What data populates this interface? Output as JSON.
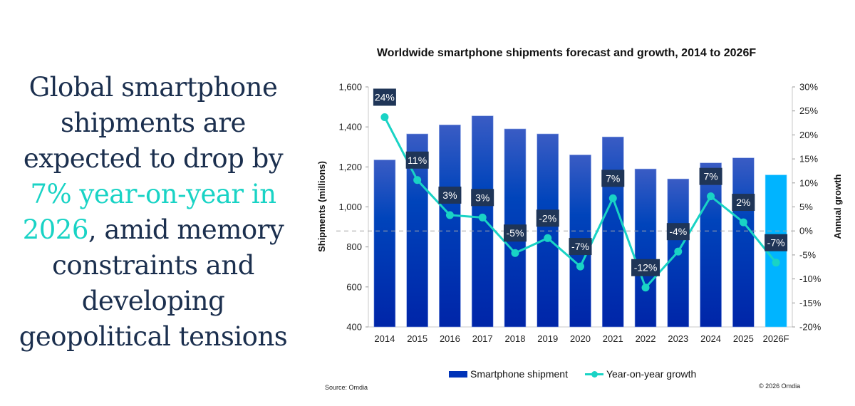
{
  "headline": {
    "part1": "Global smartphone shipments are expected to drop by ",
    "accent": "7% year-on-year in 2026",
    "part2": ", amid memory constraints and developing geopolitical tensions"
  },
  "colors": {
    "headline_text": "#1b2f4e",
    "accent": "#19d3c5",
    "bar_actual": "#0033b8",
    "bar_forecast": "#00b4ff",
    "growth_line": "#19d3c5",
    "data_label_bg": "#1f3557"
  },
  "footer": {
    "source": "Source: Omdia",
    "copyright": "© 2026 Omdia"
  },
  "chart_data": {
    "type": "bar",
    "title": "Worldwide smartphone shipments forecast and growth, 2014 to 2026F",
    "xlabel": "",
    "ylabel": "Shipments (millions)",
    "y2label": "Annual growth",
    "categories": [
      "2014",
      "2015",
      "2016",
      "2017",
      "2018",
      "2019",
      "2020",
      "2021",
      "2022",
      "2023",
      "2024",
      "2025",
      "2026F"
    ],
    "ylim": [
      400,
      1600
    ],
    "yticks": [
      400,
      600,
      800,
      1000,
      1200,
      1400,
      1600
    ],
    "ytick_labels": [
      "400",
      "600",
      "800",
      "1,000",
      "1,200",
      "1,400",
      "1,600"
    ],
    "y2lim": [
      -20,
      30
    ],
    "y2ticks": [
      -20,
      -15,
      -10,
      -5,
      0,
      5,
      10,
      15,
      20,
      25,
      30
    ],
    "y2tick_labels": [
      "-20%",
      "-15%",
      "-10%",
      "-5%",
      "0%",
      "5%",
      "10%",
      "15%",
      "20%",
      "25%",
      "30%"
    ],
    "zero_reference_line": "dashed at 0% growth",
    "forecast_categories": [
      "2026F"
    ],
    "series": [
      {
        "name": "Smartphone shipment",
        "type": "bar",
        "axis": "left",
        "values": [
          1235,
          1365,
          1410,
          1455,
          1390,
          1365,
          1260,
          1350,
          1190,
          1140,
          1220,
          1245,
          1160
        ]
      },
      {
        "name": "Year-on-year growth",
        "type": "line",
        "axis": "right",
        "values": [
          23.7,
          10.6,
          3.3,
          2.8,
          -4.6,
          -1.5,
          -7.4,
          6.8,
          -11.8,
          -4.3,
          7.2,
          1.8,
          -6.6
        ],
        "data_labels": [
          "24%",
          "11%",
          "3%",
          "3%",
          "-5%",
          "-2%",
          "-7%",
          "7%",
          "-12%",
          "-4%",
          "7%",
          "2%",
          "-7%"
        ]
      }
    ],
    "legend": {
      "position": "bottom",
      "entries": [
        "Smartphone shipment",
        "Year-on-year growth"
      ]
    },
    "grid": false
  }
}
